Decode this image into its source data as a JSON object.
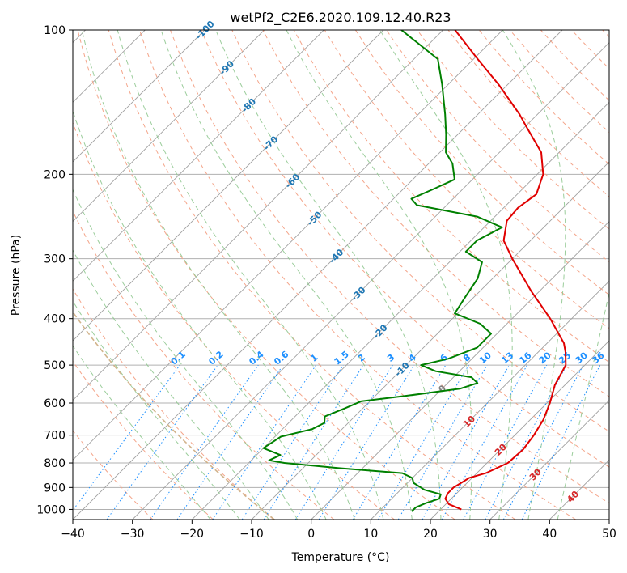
{
  "chart_data": {
    "type": "skew-t",
    "title": "wetPf2_C2E6.2020.109.12.40.R23",
    "xlabel": "Temperature (°C)",
    "ylabel": "Pressure (hPa)",
    "xlim": [
      -40,
      50
    ],
    "ylim": [
      1050,
      100
    ],
    "x_ticks": [
      "−40",
      "−30",
      "−20",
      "−10",
      "0",
      "10",
      "20",
      "30",
      "40",
      "50"
    ],
    "x_tick_values": [
      -40,
      -30,
      -20,
      -10,
      0,
      10,
      20,
      30,
      40,
      50
    ],
    "y_ticks": [
      "100",
      "200",
      "300",
      "400",
      "500",
      "600",
      "700",
      "800",
      "900",
      "1000"
    ],
    "y_tick_values": [
      100,
      200,
      300,
      400,
      500,
      600,
      700,
      800,
      900,
      1000
    ],
    "colors": {
      "temperature": "#e00000",
      "dewpoint": "#008000",
      "isotherm": "#a0a0a0",
      "dry_adiabat": "#f4a58a",
      "moist_adiabat": "#90c890",
      "mixing_ratio": "#1e90ff",
      "isotherm_label": "#1f77b4",
      "warm_label": "#d62728",
      "zero_label": "#808080",
      "zero_line": "#d2b48c"
    },
    "isotherm_labels": [
      {
        "value": -100,
        "text": "-100"
      },
      {
        "value": -90,
        "text": "-90"
      },
      {
        "value": -80,
        "text": "-80"
      },
      {
        "value": -70,
        "text": "-70"
      },
      {
        "value": -60,
        "text": "-60"
      },
      {
        "value": -50,
        "text": "-50"
      },
      {
        "value": -40,
        "text": "-40"
      },
      {
        "value": -30,
        "text": "-30"
      },
      {
        "value": -20,
        "text": "-20"
      },
      {
        "value": -10,
        "text": "-10"
      },
      {
        "value": 0,
        "text": "0"
      },
      {
        "value": 10,
        "text": "10"
      },
      {
        "value": 20,
        "text": "20"
      },
      {
        "value": 30,
        "text": "30"
      },
      {
        "value": 40,
        "text": "40"
      }
    ],
    "mixing_ratio_labels": [
      "0.1",
      "0.2",
      "0.4",
      "0.6",
      "1",
      "1.5",
      "2",
      "3",
      "4",
      "6",
      "8",
      "10",
      "13",
      "16",
      "20",
      "25",
      "30",
      "36"
    ],
    "mixing_ratio_values": [
      0.1,
      0.2,
      0.4,
      0.6,
      1,
      1.5,
      2,
      3,
      4,
      6,
      8,
      10,
      13,
      16,
      20,
      25,
      30,
      36
    ],
    "series": [
      {
        "name": "temperature",
        "points": [
          [
            1000,
            23.5
          ],
          [
            975,
            20.5
          ],
          [
            950,
            19.0
          ],
          [
            925,
            18.5
          ],
          [
            900,
            18.5
          ],
          [
            880,
            19.0
          ],
          [
            860,
            19.5
          ],
          [
            840,
            21.5
          ],
          [
            800,
            23.5
          ],
          [
            750,
            23.8
          ],
          [
            700,
            23.2
          ],
          [
            650,
            22.2
          ],
          [
            600,
            20.5
          ],
          [
            550,
            18.3
          ],
          [
            500,
            16.8
          ],
          [
            470,
            14.6
          ],
          [
            450,
            12.8
          ],
          [
            400,
            6.4
          ],
          [
            350,
            -1.5
          ],
          [
            300,
            -10.0
          ],
          [
            275,
            -14.5
          ],
          [
            250,
            -17.3
          ],
          [
            235,
            -17.6
          ],
          [
            220,
            -16.8
          ],
          [
            200,
            -19.0
          ],
          [
            180,
            -23.0
          ],
          [
            160,
            -29.5
          ],
          [
            150,
            -33.0
          ],
          [
            130,
            -41.5
          ],
          [
            115,
            -49.3
          ],
          [
            100,
            -58.0
          ]
        ]
      },
      {
        "name": "dewpoint",
        "points": [
          [
            1010,
            15.5
          ],
          [
            990,
            15.5
          ],
          [
            970,
            16.5
          ],
          [
            950,
            18.0
          ],
          [
            930,
            17.5
          ],
          [
            910,
            14.0
          ],
          [
            880,
            11.0
          ],
          [
            860,
            10.0
          ],
          [
            840,
            7.5
          ],
          [
            820,
            -4.0
          ],
          [
            800,
            -14.0
          ],
          [
            790,
            -17.0
          ],
          [
            770,
            -16.0
          ],
          [
            745,
            -20.0
          ],
          [
            725,
            -19.5
          ],
          [
            705,
            -19.0
          ],
          [
            680,
            -15.0
          ],
          [
            660,
            -14.0
          ],
          [
            640,
            -15.0
          ],
          [
            615,
            -13.0
          ],
          [
            595,
            -11.5
          ],
          [
            580,
            -5.0
          ],
          [
            560,
            3.0
          ],
          [
            545,
            5.0
          ],
          [
            530,
            3.0
          ],
          [
            515,
            -4.0
          ],
          [
            500,
            -7.5
          ],
          [
            485,
            -4.0
          ],
          [
            460,
            -1.0
          ],
          [
            430,
            -1.0
          ],
          [
            410,
            -4.5
          ],
          [
            390,
            -10.5
          ],
          [
            360,
            -11.5
          ],
          [
            330,
            -12.5
          ],
          [
            305,
            -14.5
          ],
          [
            290,
            -19.0
          ],
          [
            275,
            -19.0
          ],
          [
            258,
            -17.0
          ],
          [
            245,
            -23.0
          ],
          [
            232,
            -35.0
          ],
          [
            225,
            -37.0
          ],
          [
            215,
            -35.0
          ],
          [
            205,
            -33.0
          ],
          [
            190,
            -36.0
          ],
          [
            180,
            -39.0
          ],
          [
            165,
            -42.0
          ],
          [
            150,
            -45.5
          ],
          [
            130,
            -51.0
          ],
          [
            115,
            -56.0
          ],
          [
            100,
            -67.0
          ]
        ]
      }
    ]
  }
}
